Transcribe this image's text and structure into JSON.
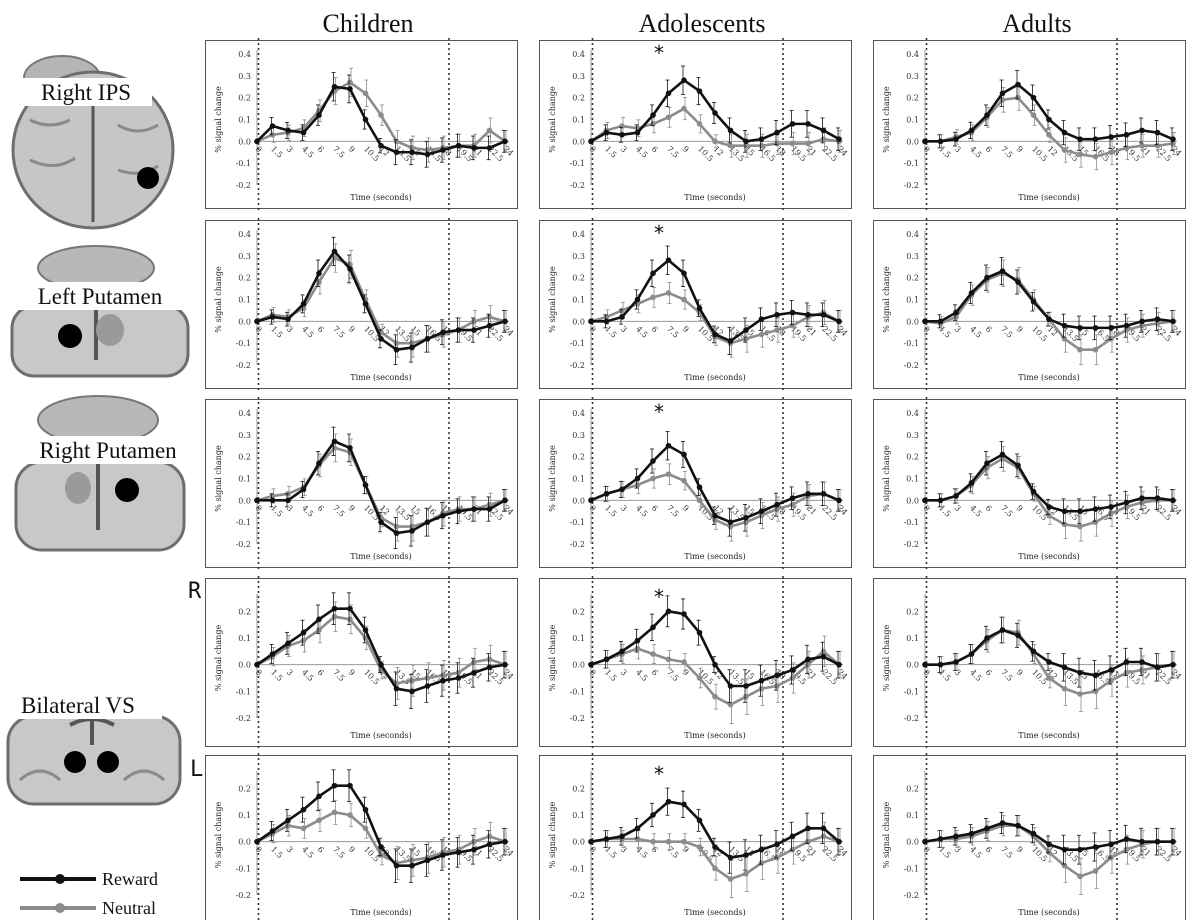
{
  "column_titles": [
    "Children",
    "Adolescents",
    "Adults"
  ],
  "roi_labels": [
    "Right IPS",
    "Left Putamen",
    "Right Putamen",
    "Bilateral VS"
  ],
  "side_labels": [
    "R",
    "L"
  ],
  "legend": [
    {
      "label": "Reward",
      "color": "#111111"
    },
    {
      "label": "Neutral",
      "color": "#8c8c8c"
    }
  ],
  "colors": {
    "reward": "#111111",
    "neutral": "#8c8c8c",
    "frame": "#555555",
    "marker": "#333333"
  },
  "chart_data": {
    "type": "line",
    "x_ticks": [
      "0",
      "1.5",
      "3",
      "4.5",
      "6",
      "7.5",
      "9",
      "10.5",
      "12",
      "13.5",
      "15",
      "16.5",
      "18",
      "19.5",
      "21",
      "22.5",
      "24"
    ],
    "xlabel": "Time (seconds)",
    "ylabel": "% signal change",
    "event_markers_x": [
      1,
      12
    ],
    "rows": [
      {
        "roi": "Right IPS",
        "ylim": [
          -0.2,
          0.4
        ],
        "y_ticks": [
          "0.4",
          "0.3",
          "0.2",
          "0.1",
          "0.0",
          "-0.1",
          "-0.2"
        ],
        "panels": [
          {
            "group": "Children",
            "star": "",
            "series": [
              {
                "name": "Reward",
                "values": [
                  0,
                  0.07,
                  0.05,
                  0.04,
                  0.12,
                  0.25,
                  0.24,
                  0.1,
                  -0.02,
                  -0.05,
                  -0.05,
                  -0.06,
                  -0.04,
                  -0.02,
                  -0.03,
                  -0.03,
                  0
                ]
              },
              {
                "name": "Neutral",
                "values": [
                  0,
                  0.03,
                  0.04,
                  0.06,
                  0.14,
                  0.23,
                  0.27,
                  0.22,
                  0.12,
                  0.0,
                  -0.03,
                  -0.04,
                  -0.03,
                  -0.02,
                  -0.02,
                  0.05,
                  0.0
                ]
              }
            ]
          },
          {
            "group": "Adolescents",
            "star": "*",
            "series": [
              {
                "name": "Reward",
                "values": [
                  0,
                  0.04,
                  0.03,
                  0.04,
                  0.12,
                  0.22,
                  0.28,
                  0.23,
                  0.13,
                  0.05,
                  0.0,
                  0.01,
                  0.04,
                  0.08,
                  0.08,
                  0.05,
                  0.01
                ]
              },
              {
                "name": "Neutral",
                "values": [
                  0,
                  0.05,
                  0.07,
                  0.06,
                  0.08,
                  0.11,
                  0.15,
                  0.08,
                  0.0,
                  -0.02,
                  -0.02,
                  -0.02,
                  -0.01,
                  -0.01,
                  -0.01,
                  0.01,
                  0.0
                ]
              }
            ]
          },
          {
            "group": "Adults",
            "star": "",
            "series": [
              {
                "name": "Reward",
                "values": [
                  0,
                  0.0,
                  0.01,
                  0.05,
                  0.12,
                  0.22,
                  0.26,
                  0.2,
                  0.1,
                  0.04,
                  0.01,
                  0.01,
                  0.02,
                  0.03,
                  0.05,
                  0.04,
                  0.01
                ]
              },
              {
                "name": "Neutral",
                "values": [
                  0,
                  0.0,
                  0.02,
                  0.04,
                  0.11,
                  0.19,
                  0.2,
                  0.12,
                  0.03,
                  -0.04,
                  -0.06,
                  -0.07,
                  -0.05,
                  -0.03,
                  -0.02,
                  -0.02,
                  -0.01
                ]
              }
            ]
          }
        ]
      },
      {
        "roi": "Left Putamen",
        "ylim": [
          -0.2,
          0.4
        ],
        "y_ticks": [
          "0.4",
          "0.3",
          "0.2",
          "0.1",
          "0.0",
          "-0.1",
          "-0.2"
        ],
        "panels": [
          {
            "group": "Children",
            "star": "",
            "series": [
              {
                "name": "Reward",
                "values": [
                  0,
                  0.02,
                  0.01,
                  0.08,
                  0.22,
                  0.32,
                  0.24,
                  0.08,
                  -0.08,
                  -0.13,
                  -0.12,
                  -0.08,
                  -0.05,
                  -0.04,
                  -0.04,
                  -0.02,
                  0
                ]
              },
              {
                "name": "Neutral",
                "values": [
                  0,
                  0.03,
                  0.02,
                  0.06,
                  0.18,
                  0.29,
                  0.26,
                  0.1,
                  -0.05,
                  -0.1,
                  -0.1,
                  -0.08,
                  -0.06,
                  -0.04,
                  0.0,
                  0.02,
                  0
                ]
              }
            ]
          },
          {
            "group": "Adolescents",
            "star": "*",
            "series": [
              {
                "name": "Reward",
                "values": [
                  0,
                  0.0,
                  0.02,
                  0.1,
                  0.22,
                  0.28,
                  0.22,
                  0.06,
                  -0.06,
                  -0.09,
                  -0.04,
                  0.01,
                  0.03,
                  0.04,
                  0.03,
                  0.03,
                  0
                ]
              },
              {
                "name": "Neutral",
                "values": [
                  0,
                  0.02,
                  0.05,
                  0.08,
                  0.11,
                  0.13,
                  0.1,
                  0.04,
                  -0.07,
                  -0.1,
                  -0.08,
                  -0.06,
                  -0.04,
                  -0.02,
                  0.02,
                  0.04,
                  0
                ]
              }
            ]
          },
          {
            "group": "Adults",
            "star": "",
            "series": [
              {
                "name": "Reward",
                "values": [
                  0,
                  0.0,
                  0.04,
                  0.13,
                  0.2,
                  0.23,
                  0.18,
                  0.09,
                  0.01,
                  -0.02,
                  -0.03,
                  -0.03,
                  -0.03,
                  -0.02,
                  0.0,
                  0.01,
                  0
                ]
              },
              {
                "name": "Neutral",
                "values": [
                  0,
                  -0.01,
                  0.02,
                  0.12,
                  0.19,
                  0.22,
                  0.19,
                  0.1,
                  0.01,
                  -0.08,
                  -0.13,
                  -0.13,
                  -0.08,
                  -0.04,
                  -0.02,
                  -0.01,
                  0
                ]
              }
            ]
          }
        ]
      },
      {
        "roi": "Right Putamen",
        "ylim": [
          -0.2,
          0.4
        ],
        "y_ticks": [
          "0.4",
          "0.3",
          "0.2",
          "0.1",
          "0.0",
          "-0.1",
          "-0.2"
        ],
        "panels": [
          {
            "group": "Children",
            "star": "",
            "series": [
              {
                "name": "Reward",
                "values": [
                  0,
                  0.0,
                  0.0,
                  0.05,
                  0.17,
                  0.27,
                  0.24,
                  0.07,
                  -0.1,
                  -0.15,
                  -0.14,
                  -0.1,
                  -0.07,
                  -0.05,
                  -0.04,
                  -0.04,
                  0
                ]
              },
              {
                "name": "Neutral",
                "values": [
                  0,
                  0.02,
                  0.03,
                  0.06,
                  0.16,
                  0.24,
                  0.22,
                  0.07,
                  -0.08,
                  -0.12,
                  -0.12,
                  -0.1,
                  -0.06,
                  -0.04,
                  -0.04,
                  -0.02,
                  0
                ]
              }
            ]
          },
          {
            "group": "Adolescents",
            "star": "*",
            "series": [
              {
                "name": "Reward",
                "values": [
                  0,
                  0.03,
                  0.05,
                  0.1,
                  0.18,
                  0.25,
                  0.21,
                  0.06,
                  -0.07,
                  -0.1,
                  -0.08,
                  -0.05,
                  -0.02,
                  0.01,
                  0.03,
                  0.03,
                  0
                ]
              },
              {
                "name": "Neutral",
                "values": [
                  0,
                  0.03,
                  0.05,
                  0.07,
                  0.1,
                  0.12,
                  0.09,
                  0.0,
                  -0.09,
                  -0.12,
                  -0.1,
                  -0.07,
                  -0.04,
                  -0.02,
                  0.02,
                  0.03,
                  0
                ]
              }
            ]
          },
          {
            "group": "Adults",
            "star": "",
            "series": [
              {
                "name": "Reward",
                "values": [
                  0,
                  0.0,
                  0.02,
                  0.08,
                  0.17,
                  0.21,
                  0.16,
                  0.04,
                  -0.03,
                  -0.05,
                  -0.05,
                  -0.04,
                  -0.03,
                  -0.01,
                  0.01,
                  0.01,
                  0
                ]
              },
              {
                "name": "Neutral",
                "values": [
                  0,
                  0.0,
                  0.02,
                  0.07,
                  0.15,
                  0.19,
                  0.15,
                  0.03,
                  -0.07,
                  -0.11,
                  -0.12,
                  -0.1,
                  -0.06,
                  -0.03,
                  -0.01,
                  0.0,
                  0
                ]
              }
            ]
          }
        ]
      },
      {
        "roi": "Bilateral VS (R)",
        "ylim": [
          -0.2,
          0.25
        ],
        "y_ticks": [
          "0.2",
          "0.1",
          "0.0",
          "-0.1",
          "-0.2"
        ],
        "panels": [
          {
            "group": "Children",
            "star": "",
            "series": [
              {
                "name": "Reward",
                "values": [
                  0,
                  0.04,
                  0.08,
                  0.12,
                  0.17,
                  0.21,
                  0.21,
                  0.13,
                  0.0,
                  -0.09,
                  -0.1,
                  -0.08,
                  -0.06,
                  -0.05,
                  -0.03,
                  -0.01,
                  0
                ]
              },
              {
                "name": "Neutral",
                "values": [
                  0,
                  0.03,
                  0.07,
                  0.09,
                  0.13,
                  0.18,
                  0.17,
                  0.1,
                  -0.02,
                  -0.07,
                  -0.06,
                  -0.05,
                  -0.04,
                  -0.03,
                  0.01,
                  0.02,
                  0
                ]
              }
            ]
          },
          {
            "group": "Adolescents",
            "star": "*",
            "series": [
              {
                "name": "Reward",
                "values": [
                  0,
                  0.02,
                  0.05,
                  0.09,
                  0.14,
                  0.2,
                  0.19,
                  0.12,
                  0.0,
                  -0.08,
                  -0.08,
                  -0.06,
                  -0.04,
                  -0.02,
                  0.02,
                  0.03,
                  0
                ]
              },
              {
                "name": "Neutral",
                "values": [
                  0,
                  0.02,
                  0.04,
                  0.06,
                  0.04,
                  0.02,
                  0.01,
                  -0.05,
                  -0.12,
                  -0.15,
                  -0.12,
                  -0.09,
                  -0.08,
                  -0.05,
                  0.0,
                  0.05,
                  0
                ]
              }
            ]
          },
          {
            "group": "Adults",
            "star": "",
            "series": [
              {
                "name": "Reward",
                "values": [
                  0,
                  0.0,
                  0.01,
                  0.04,
                  0.1,
                  0.13,
                  0.11,
                  0.05,
                  0.01,
                  -0.01,
                  -0.03,
                  -0.04,
                  -0.02,
                  0.01,
                  0.01,
                  -0.01,
                  0
                ]
              },
              {
                "name": "Neutral",
                "values": [
                  0,
                  0.0,
                  0.01,
                  0.04,
                  0.09,
                  0.13,
                  0.12,
                  0.04,
                  -0.05,
                  -0.09,
                  -0.11,
                  -0.1,
                  -0.06,
                  -0.03,
                  -0.02,
                  -0.01,
                  0
                ]
              }
            ]
          }
        ]
      },
      {
        "roi": "Bilateral VS (L)",
        "ylim": [
          -0.2,
          0.25
        ],
        "y_ticks": [
          "0.2",
          "0.1",
          "0.0",
          "-0.1",
          "-0.2"
        ],
        "panels": [
          {
            "group": "Children",
            "star": "",
            "series": [
              {
                "name": "Reward",
                "values": [
                  0,
                  0.04,
                  0.08,
                  0.12,
                  0.17,
                  0.21,
                  0.21,
                  0.12,
                  -0.02,
                  -0.09,
                  -0.09,
                  -0.07,
                  -0.05,
                  -0.04,
                  -0.03,
                  -0.01,
                  0
                ]
              },
              {
                "name": "Neutral",
                "values": [
                  0,
                  0.03,
                  0.06,
                  0.05,
                  0.08,
                  0.11,
                  0.1,
                  0.05,
                  -0.05,
                  -0.08,
                  -0.07,
                  -0.06,
                  -0.04,
                  -0.03,
                  0.0,
                  0.02,
                  0
                ]
              }
            ]
          },
          {
            "group": "Adolescents",
            "star": "*",
            "series": [
              {
                "name": "Reward",
                "values": [
                  0,
                  0.01,
                  0.02,
                  0.05,
                  0.1,
                  0.15,
                  0.14,
                  0.08,
                  -0.02,
                  -0.06,
                  -0.05,
                  -0.03,
                  -0.01,
                  0.02,
                  0.05,
                  0.05,
                  0
                ]
              },
              {
                "name": "Neutral",
                "values": [
                  0,
                  0.01,
                  0.01,
                  0.01,
                  0.0,
                  0.0,
                  0.0,
                  -0.02,
                  -0.1,
                  -0.14,
                  -0.12,
                  -0.08,
                  -0.06,
                  -0.03,
                  0.0,
                  0.02,
                  0
                ]
              }
            ]
          },
          {
            "group": "Adults",
            "star": "",
            "series": [
              {
                "name": "Reward",
                "values": [
                  0,
                  0.01,
                  0.02,
                  0.03,
                  0.05,
                  0.07,
                  0.06,
                  0.03,
                  -0.01,
                  -0.03,
                  -0.03,
                  -0.02,
                  -0.01,
                  0.01,
                  0.0,
                  0.0,
                  0
                ]
              },
              {
                "name": "Neutral",
                "values": [
                  0,
                  0.01,
                  0.01,
                  0.02,
                  0.04,
                  0.06,
                  0.06,
                  0.02,
                  -0.04,
                  -0.09,
                  -0.13,
                  -0.11,
                  -0.06,
                  -0.03,
                  -0.01,
                  0.0,
                  0
                ]
              }
            ]
          }
        ]
      }
    ]
  }
}
